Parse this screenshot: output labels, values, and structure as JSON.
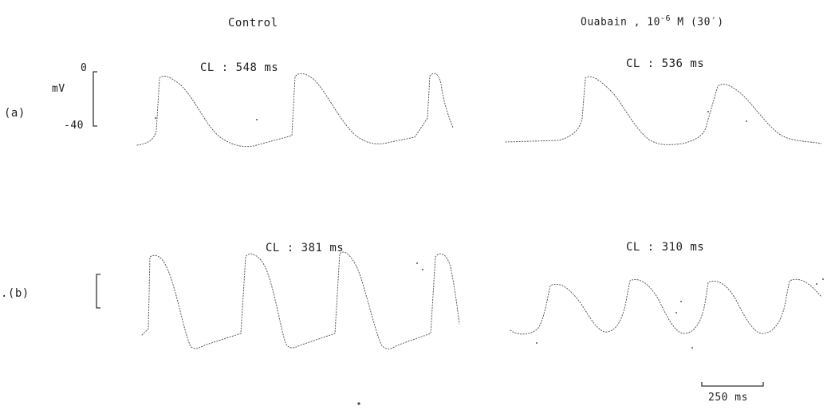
{
  "columns": {
    "control": "Control",
    "ouabain_prefix": "Ouabain , 10",
    "ouabain_exponent": "-6",
    "ouabain_suffix": " M (30′)"
  },
  "rows": {
    "a": {
      "label": "(a)",
      "control_cl": "CL : 548 ms",
      "ouabain_cl": "CL : 536 ms"
    },
    "b": {
      "label": ".(b)",
      "control_cl": "CL : 381 ms",
      "ouabain_cl": "CL : 310 ms"
    }
  },
  "voltage_scale": {
    "top": "0",
    "unit": "mV",
    "bottom": "-40"
  },
  "time_scale": {
    "label": "250 ms"
  },
  "colors": {
    "trace": "#555555",
    "text": "#1e1e1e"
  }
}
